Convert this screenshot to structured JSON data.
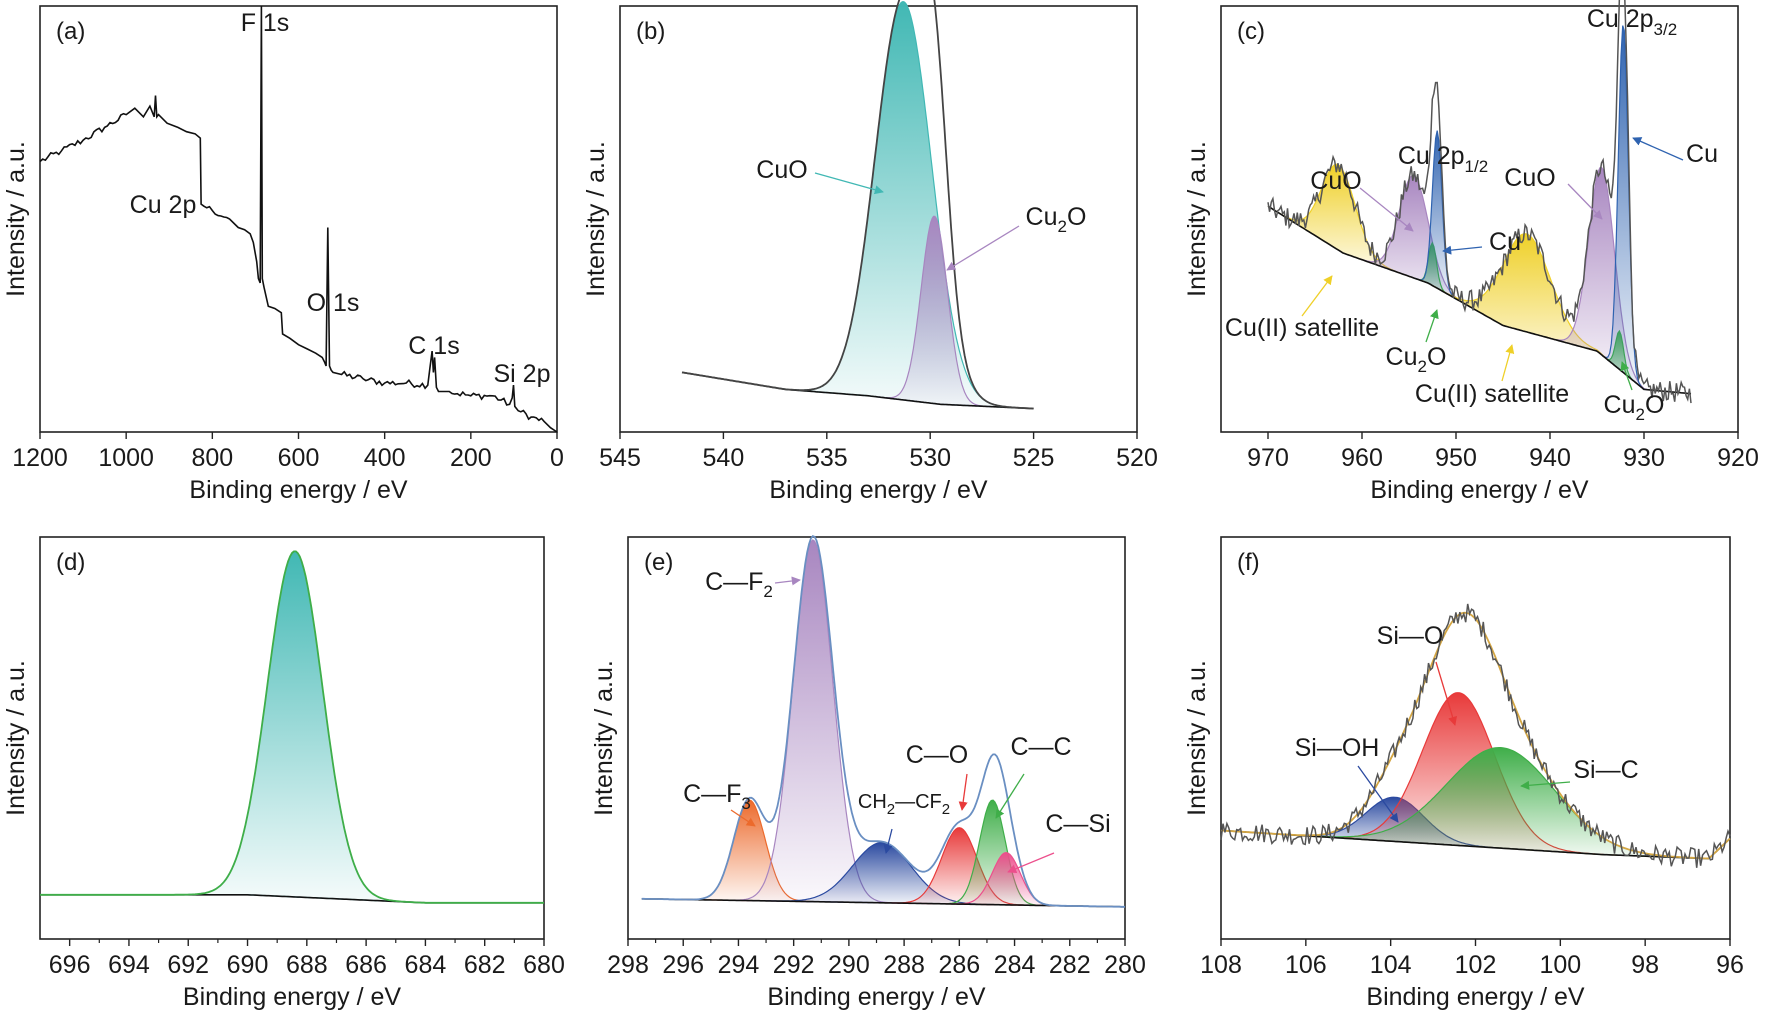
{
  "figure": {
    "colors": {
      "teal": "#41b8b4",
      "purple": "#a886c0",
      "gold": "#efd028",
      "blue": "#2f63b0",
      "green": "#3fae49",
      "red": "#e83a3a",
      "orange": "#ec6a2c",
      "pink": "#ec4f8c",
      "navy": "#2b4aa0",
      "envelope": "#d4a643",
      "axis": "#222222"
    }
  },
  "chart_data": [
    {
      "id": "a",
      "panel_label": "(a)",
      "type": "line",
      "xlabel": "Binding energy / eV",
      "ylabel": "Intensity / a.u.",
      "xlim": [
        1200,
        0
      ],
      "ylim": [
        0,
        100
      ],
      "xticks": [
        "1200",
        "1000",
        "800",
        "600",
        "400",
        "200",
        "0"
      ],
      "series": [
        {
          "name": "survey",
          "x": [
            1200,
            1150,
            1100,
            1050,
            1000,
            980,
            960,
            945,
            935,
            932,
            929,
            925,
            905,
            880,
            860,
            840,
            828,
            826,
            800,
            760,
            740,
            725,
            712,
            705,
            697,
            693,
            689,
            686,
            684,
            680,
            670,
            655,
            640,
            637,
            620,
            600,
            580,
            560,
            545,
            540,
            536,
            532,
            528,
            524,
            520,
            500,
            450,
            400,
            350,
            300,
            295,
            290,
            287,
            284,
            280,
            275,
            250,
            200,
            150,
            110,
            104,
            101,
            98,
            90,
            60,
            30,
            15,
            0
          ],
          "y": [
            63.5,
            66,
            68.5,
            71.5,
            74.5,
            76,
            74,
            76.5,
            74,
            79,
            74,
            74.5,
            72.5,
            71.5,
            70.5,
            70,
            69,
            53.5,
            52,
            50,
            48,
            47.5,
            46.5,
            44.5,
            40,
            36,
            35,
            100,
            36,
            34,
            29.5,
            29,
            28,
            23,
            22,
            20.5,
            19.5,
            18.5,
            17.5,
            16.5,
            15.5,
            48,
            15.5,
            14.5,
            14,
            13.5,
            12.5,
            11.5,
            11.5,
            11,
            15,
            19,
            14,
            17.5,
            10.5,
            9.5,
            9.5,
            8.5,
            8.5,
            6.5,
            8,
            11,
            6,
            5,
            3.5,
            2.5,
            1,
            0
          ]
        }
      ],
      "annotations": [
        "F 1s",
        "Cu 2p",
        "O 1s",
        "C 1s",
        "Si 2p"
      ]
    },
    {
      "id": "b",
      "panel_label": "(b)",
      "type": "area",
      "xlabel": "Binding energy / eV",
      "ylabel": "Intensity / a.u.",
      "xlim": [
        545,
        520
      ],
      "ylim": [
        0,
        100
      ],
      "xticks": [
        "545",
        "540",
        "535",
        "530",
        "525",
        "520"
      ],
      "x_range": [
        542,
        525
      ],
      "background": [
        [
          542,
          14
        ],
        [
          537,
          10
        ],
        [
          533,
          8.5
        ],
        [
          529.5,
          6.5
        ],
        [
          525,
          5.5
        ]
      ],
      "series": [
        {
          "name": "CuO",
          "color": "#41b8b4",
          "type": "gaussian",
          "center": 531.3,
          "height": 93.5,
          "fwhm": 3.2
        },
        {
          "name": "Cu₂O",
          "color": "#a886c0",
          "type": "gaussian",
          "center": 529.8,
          "height": 44,
          "fwhm": 1.5
        },
        {
          "name": "envelope",
          "type": "sum",
          "color": "#444444"
        }
      ],
      "annotations": [
        "CuO",
        "Cu₂O"
      ]
    },
    {
      "id": "c",
      "panel_label": "(c)",
      "type": "area",
      "xlabel": "Binding energy / eV",
      "ylabel": "Intensity / a.u.",
      "xlim": [
        975,
        920
      ],
      "ylim": [
        0,
        100
      ],
      "xticks": [
        "970",
        "960",
        "950",
        "940",
        "930",
        "920"
      ],
      "x_range": [
        970,
        925
      ],
      "background": [
        [
          970,
          53
        ],
        [
          962,
          42
        ],
        [
          953,
          35
        ],
        [
          945,
          25
        ],
        [
          935,
          19
        ],
        [
          930,
          10
        ],
        [
          925,
          9
        ]
      ],
      "series": [
        {
          "name": "Cu(II) satellite",
          "color": "#efd028",
          "type": "gaussian",
          "center": 962.5,
          "height": 20,
          "fwhm": 4.2
        },
        {
          "name": "CuO",
          "color": "#a886c0",
          "type": "gaussian",
          "center": 954.5,
          "height": 24,
          "fwhm": 3.6
        },
        {
          "name": "Cu₂O",
          "color": "#3fae49",
          "type": "gaussian",
          "center": 952.5,
          "height": 10,
          "fwhm": 1.0
        },
        {
          "name": "Cu",
          "color": "#2f63b0",
          "type": "gaussian",
          "center": 952.0,
          "height": 37,
          "fwhm": 1.2
        },
        {
          "name": "Cu(II) satellite",
          "color": "#efd028",
          "type": "gaussian",
          "center": 942.5,
          "height": 23,
          "fwhm": 6.0
        },
        {
          "name": "CuO",
          "color": "#a886c0",
          "type": "gaussian",
          "center": 934.5,
          "height": 44,
          "fwhm": 3.2
        },
        {
          "name": "Cu₂O",
          "color": "#3fae49",
          "type": "gaussian",
          "center": 932.6,
          "height": 9,
          "fwhm": 1.0
        },
        {
          "name": "Cu",
          "color": "#2f63b0",
          "type": "gaussian",
          "center": 932.2,
          "height": 82,
          "fwhm": 1.25
        },
        {
          "name": "raw",
          "type": "noisy",
          "color": "#555555"
        }
      ],
      "annotations": [
        "Cu 2p3/2",
        "Cu 2p1/2",
        "CuO",
        "CuO",
        "Cu",
        "Cu",
        "Cu(II) satellite",
        "Cu(II) satellite",
        "Cu₂O",
        "Cu₂O"
      ]
    },
    {
      "id": "d",
      "panel_label": "(d)",
      "type": "area",
      "xlabel": "Binding energy / eV",
      "ylabel": "Intensity / a.u.",
      "xlim": [
        697,
        680
      ],
      "ylim": [
        0,
        100
      ],
      "xticks": [
        "696",
        "694",
        "692",
        "690",
        "688",
        "686",
        "684",
        "682",
        "680"
      ],
      "x_range": [
        697,
        680
      ],
      "background": [
        [
          697,
          11
        ],
        [
          690,
          11
        ],
        [
          687,
          10
        ],
        [
          684,
          9
        ],
        [
          680,
          9
        ]
      ],
      "series": [
        {
          "name": "F 1s",
          "color": "#41b8b4",
          "type": "gaussian",
          "center": 688.4,
          "height": 86,
          "fwhm": 2.2
        },
        {
          "name": "envelope",
          "type": "sum",
          "color": "#3fae49"
        }
      ],
      "annotations": []
    },
    {
      "id": "e",
      "panel_label": "(e)",
      "type": "area",
      "xlabel": "Binding energy / eV",
      "ylabel": "Intensity / a.u.",
      "xlim": [
        298,
        280
      ],
      "ylim": [
        0,
        100
      ],
      "xticks": [
        "298",
        "296",
        "294",
        "292",
        "290",
        "288",
        "286",
        "284",
        "282",
        "280"
      ],
      "x_range": [
        297.5,
        280
      ],
      "background": [
        [
          297.5,
          10
        ],
        [
          280,
          8
        ]
      ],
      "series": [
        {
          "name": "C—F₃",
          "color": "#ec6a2c",
          "type": "gaussian",
          "center": 293.6,
          "height": 25,
          "fwhm": 1.35
        },
        {
          "name": "C—F₂",
          "color": "#a886c0",
          "type": "gaussian",
          "center": 291.3,
          "height": 90,
          "fwhm": 1.7
        },
        {
          "name": "CH₂—CF₂",
          "color": "#2b4aa0",
          "type": "gaussian",
          "center": 288.8,
          "height": 15,
          "fwhm": 2.5
        },
        {
          "name": "C—O",
          "color": "#e83a3a",
          "type": "gaussian",
          "center": 286.0,
          "height": 19,
          "fwhm": 1.5
        },
        {
          "name": "C—C",
          "color": "#3fae49",
          "type": "gaussian",
          "center": 284.8,
          "height": 26,
          "fwhm": 1.1
        },
        {
          "name": "C—Si",
          "color": "#ec4f8c",
          "type": "gaussian",
          "center": 284.3,
          "height": 13,
          "fwhm": 1.2
        },
        {
          "name": "envelope",
          "type": "sum",
          "color": "#6a8fc2"
        }
      ],
      "annotations": [
        "C—F₂",
        "C—F₃",
        "CH₂—CF₂",
        "C—O",
        "C—C",
        "C—Si"
      ]
    },
    {
      "id": "f",
      "panel_label": "(f)",
      "type": "area",
      "xlabel": "Binding energy / eV",
      "ylabel": "Intensity / a.u.",
      "xlim": [
        108,
        96
      ],
      "ylim": [
        0,
        100
      ],
      "xticks": [
        "108",
        "106",
        "104",
        "102",
        "100",
        "98",
        "96"
      ],
      "x_range": [
        108,
        96
      ],
      "background": [
        [
          108,
          27
        ],
        [
          105,
          25
        ],
        [
          102,
          23
        ],
        [
          99,
          21
        ],
        [
          96.5,
          20
        ],
        [
          96,
          25
        ]
      ],
      "series": [
        {
          "name": "Si—OH",
          "color": "#2b4aa0",
          "type": "gaussian",
          "center": 103.9,
          "height": 11,
          "fwhm": 1.6
        },
        {
          "name": "Si—O",
          "color": "#e83a3a",
          "type": "gaussian",
          "center": 102.4,
          "height": 38,
          "fwhm": 2.0
        },
        {
          "name": "Si—C",
          "color": "#3fae49",
          "type": "gaussian",
          "center": 101.4,
          "height": 25,
          "fwhm": 3.0
        },
        {
          "name": "envelope",
          "type": "sum",
          "color": "#d4a643"
        },
        {
          "name": "raw",
          "type": "noisy",
          "color": "#555555"
        }
      ],
      "annotations": [
        "Si—O",
        "Si—OH",
        "Si—C"
      ]
    }
  ]
}
